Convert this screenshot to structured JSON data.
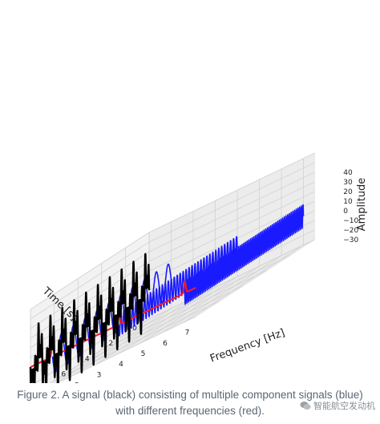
{
  "chart_data": {
    "type": "line",
    "title": "",
    "xlabel": "Time [s]",
    "ylabel": "Frequency [Hz]",
    "zlabel": "Amplitude",
    "x_ticks": [
      "0",
      "2",
      "4",
      "6",
      "8",
      "10"
    ],
    "y_ticks": [
      "0",
      "1",
      "2",
      "3",
      "4",
      "5",
      "6",
      "7"
    ],
    "z_ticks": [
      "40",
      "30",
      "20",
      "10",
      "0",
      "−10",
      "−20",
      "−30"
    ],
    "xlim": [
      0,
      10
    ],
    "ylim": [
      0,
      7.5
    ],
    "zlim": [
      -30,
      40
    ],
    "grid": true,
    "series": [
      {
        "color": "#000000",
        "kind": "time-signal-sum",
        "frequency_hz": 0,
        "amplitude": 35
      },
      {
        "color": "#1a1aff",
        "kind": "component-sine",
        "frequency_hz": 1,
        "amplitude": 18
      },
      {
        "color": "#1a1aff",
        "kind": "component-sine",
        "frequency_hz": 4,
        "amplitude": 12
      },
      {
        "color": "#1a1aff",
        "kind": "component-sine",
        "frequency_hz": 7,
        "amplitude": 12
      },
      {
        "color": "#ff1a1a",
        "kind": "frequency-spectrum",
        "peaks_hz": [
          1,
          4,
          7
        ],
        "peak_amplitude": 12
      }
    ]
  },
  "caption": {
    "line1": "Figure 2. A signal (black) consisting of multiple component signals (blue)",
    "line2": "with different frequencies (red)."
  },
  "watermark": {
    "text": "智能航空发动机"
  }
}
